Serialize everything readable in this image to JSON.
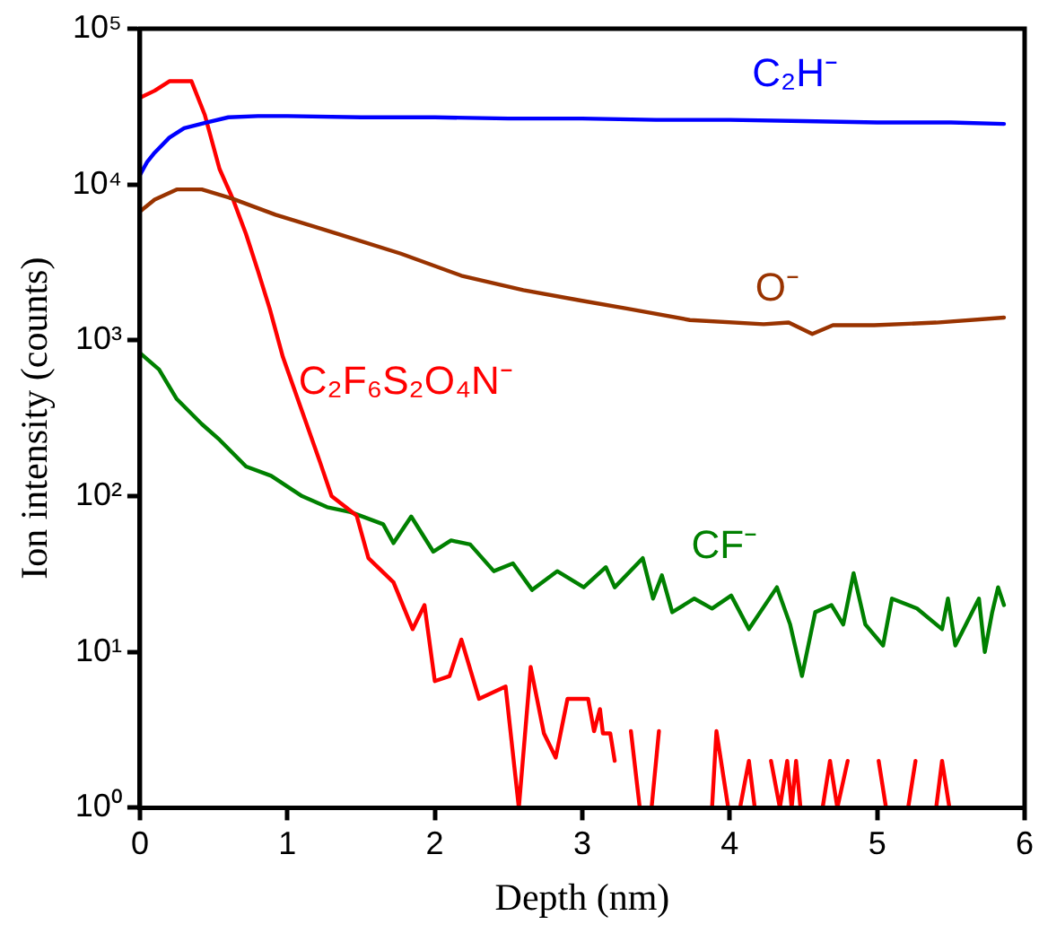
{
  "chart_data": {
    "type": "line",
    "xlabel": "Depth (nm)",
    "ylabel": "Ion intensity (counts)",
    "log": "y",
    "grid": false,
    "legend": false,
    "marker": "none",
    "line_style": "solid",
    "xlim": [
      0,
      6
    ],
    "xticks": [
      0,
      1,
      2,
      3,
      4,
      5,
      6
    ],
    "ylim": [
      1,
      100000
    ],
    "yticks": [
      {
        "value": 1,
        "label": "10⁰"
      },
      {
        "value": 10,
        "label": "10¹"
      },
      {
        "value": 100,
        "label": "10²"
      },
      {
        "value": 1000,
        "label": "10³"
      },
      {
        "value": 10000,
        "label": "10⁴"
      },
      {
        "value": 100000,
        "label": "10⁵"
      }
    ],
    "series": [
      {
        "name": "C₂H⁻",
        "color": "#0000ff",
        "x": [
          0,
          0.05,
          0.1,
          0.2,
          0.3,
          0.45,
          0.6,
          0.8,
          1,
          1.5,
          2,
          2.5,
          3,
          3.5,
          4,
          4.5,
          5,
          5.5,
          5.86
        ],
        "values": [
          11500,
          14000,
          16000,
          20000,
          23000,
          25000,
          27000,
          27500,
          27500,
          27000,
          27000,
          26500,
          26500,
          26000,
          26000,
          25500,
          25000,
          25000,
          24500
        ]
      },
      {
        "name": "O⁻",
        "color": "#993300",
        "x": [
          0,
          0.1,
          0.25,
          0.42,
          0.63,
          0.92,
          1.35,
          1.77,
          2.18,
          2.6,
          2.99,
          3.3,
          3.73,
          4.23,
          4.4,
          4.56,
          4.7,
          4.98,
          5.4,
          5.86
        ],
        "values": [
          6700,
          8000,
          9300,
          9300,
          8100,
          6400,
          4800,
          3600,
          2600,
          2100,
          1800,
          1600,
          1350,
          1270,
          1300,
          1100,
          1250,
          1250,
          1300,
          1400
        ]
      },
      {
        "name": "C₂F₆S₂O₄N⁻",
        "color": "#ff0000",
        "x": [
          0,
          0.1,
          0.2,
          0.35,
          0.44,
          0.54,
          0.63,
          0.72,
          0.8,
          0.88,
          0.97,
          1.1,
          1.22,
          1.3,
          1.47,
          1.55,
          1.72,
          1.85,
          1.93,
          2,
          2.1,
          2.18,
          2.3,
          2.48,
          2.57,
          2.65,
          2.74,
          2.82,
          2.9,
          3.04,
          3.08,
          3.12,
          3.14,
          3.19,
          3.22,
          3.27,
          3.33,
          3.39,
          3.47,
          3.52,
          3.6,
          3.88,
          3.91,
          3.99,
          4.07,
          4.13,
          4.17,
          4.22,
          4.28,
          4.34,
          4.39,
          4.42,
          4.45,
          4.48,
          4.55,
          4.63,
          4.68,
          4.73,
          4.8,
          4.9,
          5.01,
          5.06,
          5.15,
          5.21,
          5.26,
          5.35,
          5.4,
          5.44,
          5.49
        ],
        "values": [
          36000,
          40000,
          46000,
          46000,
          28000,
          12600,
          8100,
          4800,
          2800,
          1600,
          780,
          350,
          167,
          100,
          75,
          40,
          28,
          14,
          20,
          6.5,
          7,
          12,
          5,
          6,
          1,
          8,
          3,
          2.1,
          5,
          5,
          3.1,
          4.3,
          3,
          3,
          2,
          null,
          3.1,
          1,
          1,
          3.1,
          null,
          1,
          3.1,
          1,
          1,
          2,
          1,
          null,
          2,
          1,
          2,
          1,
          2,
          1,
          null,
          1,
          2,
          1,
          2,
          null,
          2,
          1,
          null,
          1,
          2,
          null,
          1,
          2,
          1
        ]
      },
      {
        "name": "CF⁻",
        "color": "#008000",
        "x": [
          0,
          0.13,
          0.25,
          0.42,
          0.54,
          0.72,
          0.89,
          1.1,
          1.27,
          1.43,
          1.65,
          1.72,
          1.84,
          1.99,
          2.11,
          2.24,
          2.4,
          2.53,
          2.66,
          2.83,
          3.01,
          3.16,
          3.22,
          3.41,
          3.48,
          3.54,
          3.61,
          3.76,
          3.88,
          4.01,
          4.13,
          4.32,
          4.41,
          4.49,
          4.58,
          4.69,
          4.77,
          4.84,
          4.92,
          5.04,
          5.1,
          5.27,
          5.44,
          5.48,
          5.53,
          5.69,
          5.73,
          5.78,
          5.82,
          5.86
        ],
        "values": [
          830,
          650,
          420,
          290,
          230,
          155,
          135,
          100,
          85,
          79,
          66,
          50,
          74,
          44,
          52,
          49,
          33,
          37,
          25,
          33,
          26,
          35,
          26,
          40,
          22,
          31,
          18,
          22,
          19,
          23,
          14,
          26,
          15,
          7,
          18,
          20,
          15,
          32,
          15,
          11,
          22,
          19,
          14,
          22,
          11,
          22,
          10,
          18,
          26,
          20
        ]
      }
    ]
  }
}
